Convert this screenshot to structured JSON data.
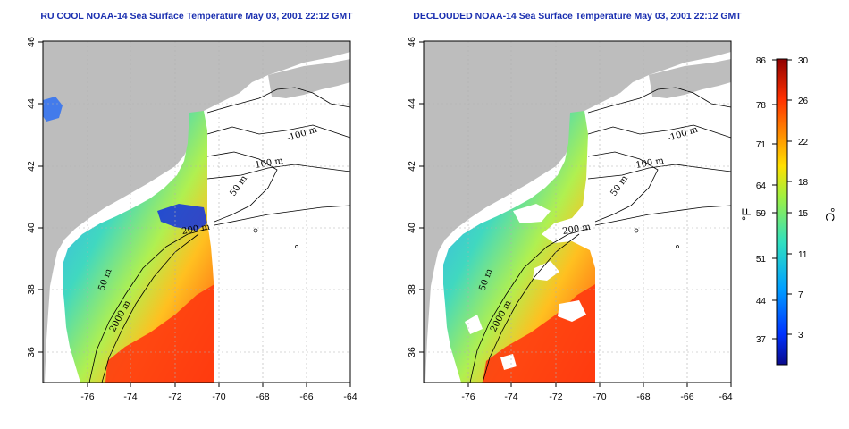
{
  "maps": [
    {
      "title": "RU COOL NOAA-14 Sea Surface Temperature May 03, 2001 22:12 GMT",
      "lon_ticks": [
        "-76",
        "-74",
        "-72",
        "-70",
        "-68",
        "-66",
        "-64"
      ],
      "lat_ticks": [
        "36",
        "38",
        "40",
        "42",
        "44",
        "46"
      ],
      "contour_labels": [
        "-100 m",
        "100 m",
        "50 m",
        "200 m",
        "50 m",
        "2000 m"
      ],
      "clouds_removed": false
    },
    {
      "title": "DECLOUDED NOAA-14 Sea Surface Temperature May 03, 2001 22:12 GMT",
      "lon_ticks": [
        "-76",
        "-74",
        "-72",
        "-70",
        "-68",
        "-66",
        "-64"
      ],
      "lat_ticks": [
        "36",
        "38",
        "40",
        "42",
        "44",
        "46"
      ],
      "contour_labels": [
        "-100 m",
        "100 m",
        "50 m",
        "200 m",
        "50 m",
        "2000 m"
      ],
      "clouds_removed": true
    }
  ],
  "colorbar": {
    "f_label": "°F",
    "c_label": "°C",
    "f_ticks": [
      "86",
      "78",
      "71",
      "64",
      "59",
      "51",
      "44",
      "37"
    ],
    "c_ticks": [
      "30",
      "26",
      "22",
      "18",
      "15",
      "11",
      "7",
      "3"
    ],
    "colors": [
      "#0a0a8c",
      "#0032ff",
      "#00a0ff",
      "#30e0c0",
      "#a0f040",
      "#ffe000",
      "#ff9000",
      "#ff3000",
      "#c00000",
      "#900000"
    ]
  },
  "map_colors": {
    "land": "#bdbdbd",
    "ocean_nodata": "#ffffff",
    "grid": "#b0b0b0"
  }
}
